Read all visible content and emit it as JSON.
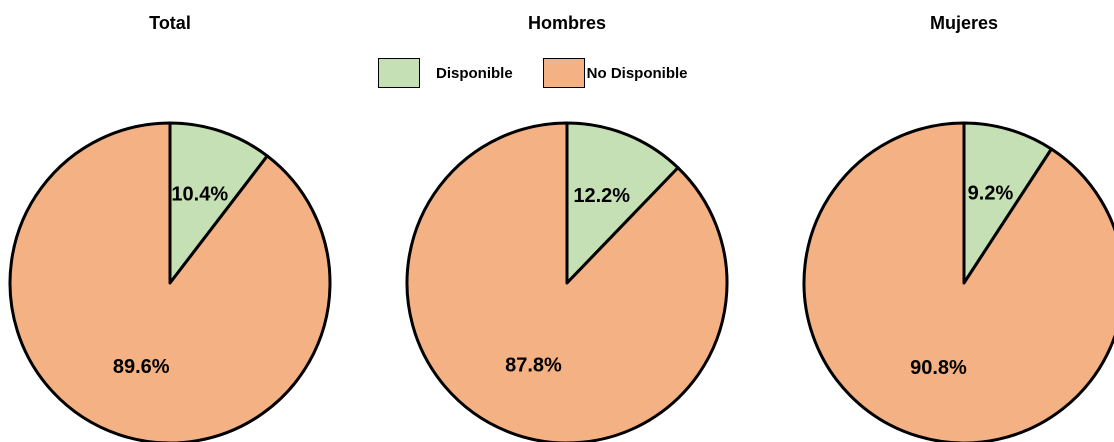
{
  "legend": {
    "items": [
      {
        "label": "Disponible",
        "color": "#c5e0b4"
      },
      {
        "label": "No Disponible",
        "color": "#f4b183"
      }
    ]
  },
  "chart_data": [
    {
      "type": "pie",
      "title": "Total",
      "categories": [
        "Disponible",
        "No Disponible"
      ],
      "values": [
        10.4,
        89.6
      ],
      "labels": [
        "10.4%",
        "89.6%"
      ],
      "colors": [
        "#c5e0b4",
        "#f4b183"
      ]
    },
    {
      "type": "pie",
      "title": "Hombres",
      "categories": [
        "Disponible",
        "No Disponible"
      ],
      "values": [
        12.2,
        87.8
      ],
      "labels": [
        "12.2%",
        "87.8%"
      ],
      "colors": [
        "#c5e0b4",
        "#f4b183"
      ]
    },
    {
      "type": "pie",
      "title": "Mujeres",
      "categories": [
        "Disponible",
        "No Disponible"
      ],
      "values": [
        9.2,
        90.8
      ],
      "labels": [
        "9.2%",
        "90.8%"
      ],
      "colors": [
        "#c5e0b4",
        "#f4b183"
      ]
    }
  ]
}
